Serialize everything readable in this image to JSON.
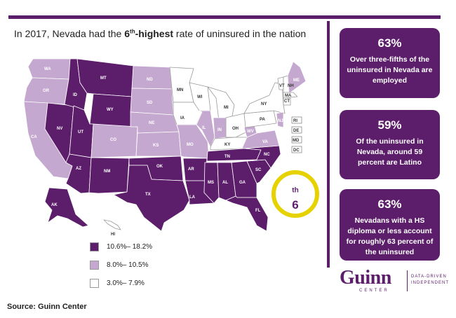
{
  "colors": {
    "high": "#5c1d6b",
    "mid": "#c4a8cf",
    "low": "#ffffff",
    "accent_ring": "#e6d200"
  },
  "headline": {
    "pre": "In 2017, Nevada had the ",
    "rank": "6",
    "rank_suffix": "th",
    "highlight": "-highest",
    "post": " rate of uninsured in the nation"
  },
  "rank_badge": {
    "number": "6",
    "suffix": "th"
  },
  "cards": [
    {
      "big": "63%",
      "text": "Over three-fifths of the uninsured in Nevada are employed"
    },
    {
      "big": "59%",
      "text": "Of the uninsured in Nevada, around 59 percent are Latino"
    },
    {
      "big": "63%",
      "text": "Nevadans with a HS diploma or less account for roughly 63 percent of the uninsured"
    }
  ],
  "legend": [
    {
      "label": "10.6%– 18.2%",
      "category": "high"
    },
    {
      "label": "8.0%– 10.5%",
      "category": "mid"
    },
    {
      "label": "3.0%– 7.9%",
      "category": "low"
    }
  ],
  "states": {
    "WA": "mid",
    "OR": "mid",
    "CA": "mid",
    "NV": "high",
    "ID": "high",
    "MT": "high",
    "WY": "high",
    "UT": "high",
    "AZ": "high",
    "CO": "mid",
    "NM": "high",
    "ND": "mid",
    "SD": "mid",
    "NE": "mid",
    "KS": "mid",
    "OK": "high",
    "TX": "high",
    "MN": "low",
    "IA": "low",
    "MO": "mid",
    "AR": "high",
    "LA": "high",
    "WI": "low",
    "IL": "mid",
    "MI": "low",
    "IN": "mid",
    "OH": "low",
    "KY": "low",
    "TN": "high",
    "MS": "high",
    "AL": "high",
    "GA": "high",
    "FL": "high",
    "SC": "high",
    "NC": "high",
    "VA": "mid",
    "WV": "mid",
    "PA": "low",
    "NY": "low",
    "VT": "low",
    "NH": "low",
    "ME": "mid",
    "MA": "low",
    "CT": "low",
    "NJ": "mid",
    "RI": "low",
    "DE": "low",
    "MD": "low",
    "DC": "low",
    "AK": "high",
    "HI": "low"
  },
  "source": "Source: Guinn Center",
  "logo": {
    "name": "Guinn",
    "sub": "CENTER",
    "tag_line1": "DATA-DRIVEN",
    "tag_line2": "INDEPENDENT"
  }
}
